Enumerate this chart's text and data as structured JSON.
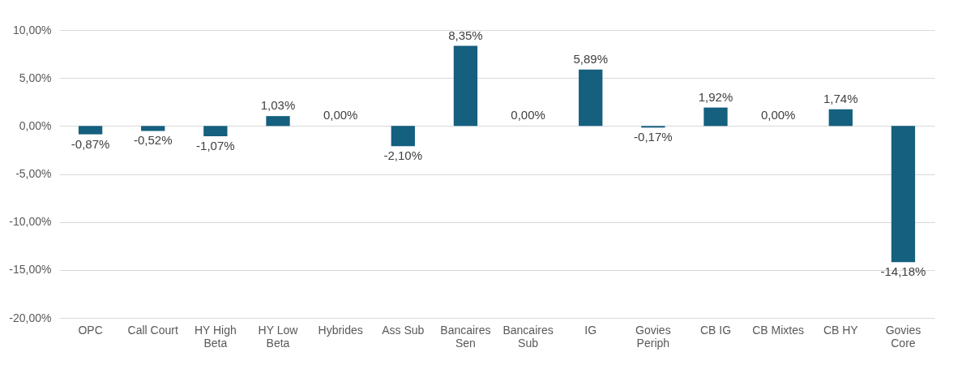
{
  "chart_data": {
    "type": "bar",
    "categories": [
      "OPC",
      "Call Court",
      "HY High Beta",
      "HY Low Beta",
      "Hybrides",
      "Ass Sub",
      "Bancaires Sen",
      "Bancaires Sub",
      "IG",
      "Govies Periph",
      "CB IG",
      "CB Mixtes",
      "CB HY",
      "Govies Core"
    ],
    "values": [
      -0.87,
      -0.52,
      -1.07,
      1.03,
      0,
      -2.1,
      8.35,
      0,
      5.89,
      -0.17,
      1.92,
      0,
      1.74,
      -14.18
    ],
    "value_labels": [
      "-0,87%",
      "-0,52%",
      "-1,07%",
      "1,03%",
      "0,00%",
      "-2,10%",
      "8,35%",
      "0,00%",
      "5,89%",
      "-0,17%",
      "1,92%",
      "0,00%",
      "1,74%",
      "-14,18%"
    ],
    "color": "#155f7f",
    "ylim": [
      -20,
      10
    ],
    "yticks": [
      {
        "value": -20,
        "label": "-20,00%"
      },
      {
        "value": -15,
        "label": "-15,00%"
      },
      {
        "value": -10,
        "label": "-10,00%"
      },
      {
        "value": -5,
        "label": "-5,00%"
      },
      {
        "value": 0,
        "label": "0,00%"
      },
      {
        "value": 5,
        "label": "5,00%"
      },
      {
        "value": 10,
        "label": "10,00%"
      }
    ],
    "grid": "y"
  }
}
